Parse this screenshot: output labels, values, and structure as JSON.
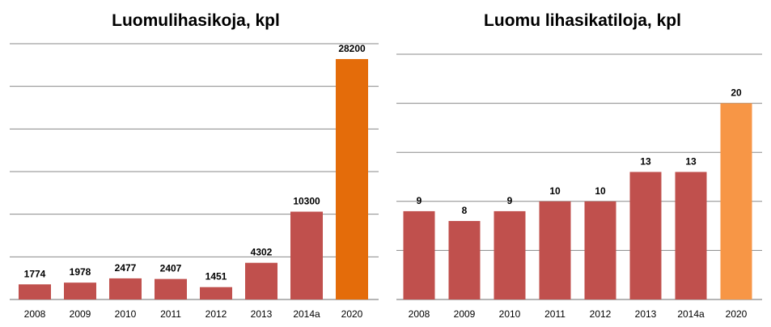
{
  "chart_data": [
    {
      "type": "bar",
      "title": "Luomulihasikoja, kpl",
      "categories": [
        "2008",
        "2009",
        "2010",
        "2011",
        "2012",
        "2013",
        "2014a",
        "2020"
      ],
      "values": [
        1774,
        1978,
        2477,
        2407,
        1451,
        4302,
        10300,
        28200
      ],
      "ylim": [
        0,
        30000
      ],
      "grid": true,
      "colors": {
        "default": "#c0504d",
        "highlight": "#e46c0a",
        "grid": "#8a8a8a"
      }
    },
    {
      "type": "bar",
      "title": "Luomu lihasikatiloja, kpl",
      "categories": [
        "2008",
        "2009",
        "2010",
        "2011",
        "2012",
        "2013",
        "2014a",
        "2020"
      ],
      "values": [
        9,
        8,
        9,
        10,
        10,
        13,
        13,
        20
      ],
      "ylim": [
        0,
        25
      ],
      "grid": true,
      "colors": {
        "default": "#c0504d",
        "highlight": "#f79646",
        "grid": "#8a8a8a"
      }
    }
  ]
}
